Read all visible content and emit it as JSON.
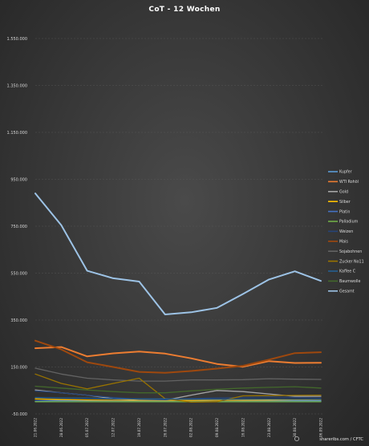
{
  "chart_data": {
    "type": "line",
    "title": "CoT - 12 Wochen",
    "source": "shareribs.com / CFTC",
    "x": [
      "21.06.2022",
      "28.06.2022",
      "05.07.2022",
      "12.07.2022",
      "19.07.2022",
      "26.07.2022",
      "02.08.2022",
      "09.08.2022",
      "16.08.2022",
      "23.08.2022",
      "30.08.2022",
      "06.09.2022"
    ],
    "y_ticks": [
      "-50.000",
      "150.000",
      "350.000",
      "550.000",
      "750.000",
      "950.000",
      "1.150.000",
      "1.350.000",
      "1.550.000"
    ],
    "ylim": [
      -50000,
      1550000
    ],
    "grid": true,
    "legend_position": "right",
    "series": [
      {
        "name": "Kupfer",
        "color": "#5b9bd5",
        "values": [
          4000,
          8000,
          6000,
          4000,
          4000,
          6000,
          6000,
          2000,
          4000,
          6000,
          6000,
          6000
        ]
      },
      {
        "name": "WTI Rohöl",
        "color": "#ed7d31",
        "values": [
          230000,
          235000,
          195000,
          208000,
          216000,
          207000,
          187000,
          163000,
          151000,
          175000,
          167000,
          168000
        ]
      },
      {
        "name": "Gold",
        "color": "#a5a5a5",
        "values": [
          52000,
          40000,
          30000,
          15000,
          10000,
          8000,
          30000,
          50000,
          45000,
          35000,
          25000,
          25000
        ]
      },
      {
        "name": "Silber",
        "color": "#ffc000",
        "values": [
          14000,
          11000,
          9000,
          8000,
          8000,
          8000,
          7000,
          8000,
          8000,
          9000,
          10000,
          11000
        ]
      },
      {
        "name": "Platin",
        "color": "#4472c4",
        "values": [
          5000,
          5000,
          4000,
          4000,
          3000,
          3000,
          3000,
          3000,
          3000,
          3000,
          3000,
          3000
        ]
      },
      {
        "name": "Palladium",
        "color": "#70ad47",
        "values": [
          2000,
          2000,
          2000,
          2000,
          2000,
          2000,
          2000,
          2000,
          2000,
          2000,
          2000,
          2000
        ]
      },
      {
        "name": "Weizen",
        "color": "#264478",
        "values": [
          48000,
          40000,
          30000,
          20000,
          12000,
          10000,
          15000,
          18000,
          20000,
          22000,
          20000,
          18000
        ]
      },
      {
        "name": "Mais",
        "color": "#9e480e",
        "values": [
          262000,
          225000,
          170000,
          150000,
          129000,
          125000,
          133000,
          143000,
          155000,
          181000,
          209000,
          213000
        ]
      },
      {
        "name": "Sojabohnen",
        "color": "#636363",
        "values": [
          145000,
          120000,
          102000,
          95000,
          90000,
          90000,
          95000,
          95000,
          96000,
          100000,
          98000,
          97000
        ]
      },
      {
        "name": "Zucker No11",
        "color": "#997300",
        "values": [
          120000,
          80000,
          57000,
          80000,
          102000,
          15000,
          0,
          2000,
          27000,
          28000,
          29000,
          30000
        ]
      },
      {
        "name": "Kaffee C",
        "color": "#255e91",
        "values": [
          20000,
          18000,
          17000,
          15000,
          14000,
          14000,
          13000,
          12000,
          13000,
          13000,
          12000,
          12000
        ]
      },
      {
        "name": "Baumwolle",
        "color": "#43682b",
        "values": [
          68000,
          60000,
          52000,
          45000,
          40000,
          40000,
          48000,
          55000,
          60000,
          63000,
          66000,
          60000
        ]
      },
      {
        "name": "Gesamt",
        "color": "#9dc3e6",
        "values": [
          890000,
          754000,
          560000,
          528000,
          514000,
          374000,
          383000,
          402000,
          461000,
          523000,
          558000,
          517000
        ]
      }
    ]
  }
}
